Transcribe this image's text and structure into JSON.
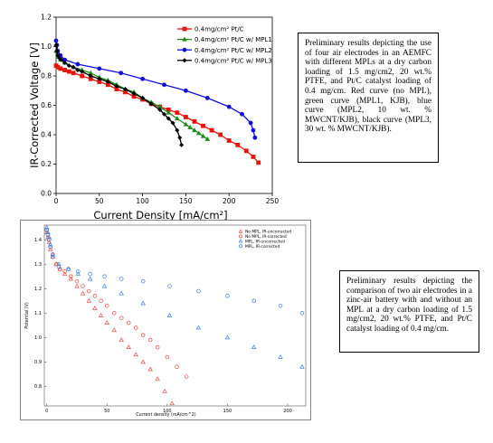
{
  "captions": {
    "top": "Preliminary results depicting the use of four air electrodes in an AEMFC with different MPLs at a dry carbon loading of 1.5 mg/cm2, 20 wt.% PTFE, and Pt/C catalyst loading of 0.4 mg/cm. Red curve (no MPL), green curve (MPL1, KJB), blue curve (MPL2, 10 wt. % MWCNT/KJB), black curve (MPL3, 30 wt. % MWCNT/KJB).",
    "bottom": "Preliminary results depicting the comparison of two air electrodes in a zinc-air battery with and without an MPL at a dry carbon loading of 1.5 mg/cm2, 20 wt.% PTFE, and Pt/C catalyst loading of 0.4 mg/cm."
  },
  "chart_data": [
    {
      "type": "line",
      "xlabel": "Current Density [mA/cm²]",
      "ylabel": "IR-Corrected Voltage [V]",
      "xlim": [
        0,
        250
      ],
      "ylim": [
        0,
        1.2
      ],
      "xticks": [
        "0",
        "50",
        "100",
        "150",
        "200",
        "250"
      ],
      "yticks": [
        "0.0",
        "0.2",
        "0.4",
        "0.6",
        "0.8",
        "1.0",
        "1.2"
      ],
      "grid": false,
      "legend_position": "top-right",
      "series": [
        {
          "name": "0.4mg/cm² Pt/C",
          "color": "#e8120c",
          "marker": "square",
          "x": [
            0,
            2,
            5,
            10,
            15,
            20,
            30,
            40,
            50,
            60,
            70,
            80,
            90,
            100,
            110,
            120,
            130,
            140,
            150,
            160,
            170,
            180,
            190,
            200,
            210,
            220,
            228,
            234
          ],
          "y": [
            0.87,
            0.86,
            0.85,
            0.84,
            0.83,
            0.82,
            0.8,
            0.78,
            0.76,
            0.74,
            0.71,
            0.69,
            0.66,
            0.64,
            0.61,
            0.59,
            0.57,
            0.55,
            0.52,
            0.49,
            0.46,
            0.43,
            0.4,
            0.36,
            0.33,
            0.29,
            0.25,
            0.21
          ]
        },
        {
          "name": "0.4mg/cm² Pt/C w/ MPL1",
          "color": "#1b8c1b",
          "marker": "triangle",
          "x": [
            0,
            2,
            5,
            10,
            20,
            30,
            40,
            50,
            60,
            70,
            80,
            90,
            100,
            110,
            120,
            130,
            140,
            150,
            155,
            160,
            165,
            170,
            175
          ],
          "y": [
            0.97,
            0.93,
            0.91,
            0.89,
            0.86,
            0.84,
            0.82,
            0.79,
            0.77,
            0.74,
            0.71,
            0.69,
            0.65,
            0.62,
            0.59,
            0.55,
            0.51,
            0.47,
            0.45,
            0.43,
            0.41,
            0.39,
            0.37
          ]
        },
        {
          "name": "0.4mg/cm² Pt/C w/ MPL2",
          "color": "#1010d8",
          "marker": "circle",
          "x": [
            0,
            1,
            2,
            5,
            10,
            25,
            50,
            75,
            100,
            125,
            150,
            175,
            200,
            215,
            225,
            228,
            230
          ],
          "y": [
            1.04,
            1.01,
            0.97,
            0.94,
            0.91,
            0.88,
            0.85,
            0.82,
            0.78,
            0.74,
            0.7,
            0.65,
            0.59,
            0.54,
            0.48,
            0.43,
            0.38
          ]
        },
        {
          "name": "0.4mg/cm² Pt/C w/ MPL3",
          "color": "#000000",
          "marker": "diamond",
          "x": [
            0,
            1,
            2,
            4,
            6,
            10,
            15,
            20,
            25,
            30,
            40,
            50,
            60,
            70,
            80,
            90,
            100,
            110,
            120,
            125,
            130,
            135,
            140,
            143,
            145
          ],
          "y": [
            1.01,
            0.97,
            0.94,
            0.92,
            0.91,
            0.89,
            0.87,
            0.86,
            0.84,
            0.83,
            0.8,
            0.78,
            0.76,
            0.73,
            0.71,
            0.68,
            0.65,
            0.61,
            0.57,
            0.54,
            0.51,
            0.48,
            0.43,
            0.38,
            0.33
          ]
        }
      ]
    },
    {
      "type": "scatter",
      "xlabel": "Current density (mA/cm^2)",
      "ylabel": "Potential (V)",
      "xlim": [
        -2,
        215
      ],
      "ylim": [
        0.72,
        1.46
      ],
      "xticks": [
        "0",
        "50",
        "100",
        "150",
        "200"
      ],
      "yticks": [
        "0.8",
        "0.9",
        "1.0",
        "1.1",
        "1.2",
        "1.3",
        "1.4"
      ],
      "grid": false,
      "legend_position": "top-right",
      "series": [
        {
          "name": "No MPL, IR-uncorrected",
          "color": "#e84a4a",
          "marker": "triangle",
          "x": [
            0,
            1,
            2,
            3,
            5,
            8,
            11,
            15,
            20,
            25,
            30,
            35,
            40,
            45,
            50,
            56,
            62,
            68,
            74,
            80,
            86,
            92,
            98,
            104
          ],
          "y": [
            1.43,
            1.41,
            1.39,
            1.36,
            1.33,
            1.3,
            1.28,
            1.26,
            1.24,
            1.21,
            1.18,
            1.15,
            1.12,
            1.09,
            1.06,
            1.03,
            0.99,
            0.96,
            0.93,
            0.9,
            0.87,
            0.83,
            0.78,
            0.73
          ]
        },
        {
          "name": "No MPL, IR-corrected",
          "color": "#e84a4a",
          "marker": "circle",
          "x": [
            0,
            1,
            2,
            3,
            5,
            8,
            11,
            15,
            20,
            25,
            30,
            35,
            40,
            45,
            50,
            56,
            62,
            68,
            74,
            80,
            86,
            92,
            100,
            108,
            116
          ],
          "y": [
            1.44,
            1.42,
            1.4,
            1.37,
            1.34,
            1.3,
            1.28,
            1.27,
            1.25,
            1.23,
            1.21,
            1.19,
            1.17,
            1.15,
            1.13,
            1.1,
            1.08,
            1.06,
            1.04,
            1.01,
            0.99,
            0.96,
            0.92,
            0.88,
            0.84
          ]
        },
        {
          "name": "MPL, IR-uncorrected",
          "color": "#3f7fd9",
          "marker": "triangle",
          "x": [
            0,
            1,
            2,
            3,
            5,
            10,
            18,
            26,
            36,
            48,
            62,
            80,
            102,
            126,
            150,
            172,
            194,
            212
          ],
          "y": [
            1.45,
            1.43,
            1.41,
            1.38,
            1.34,
            1.3,
            1.28,
            1.26,
            1.24,
            1.21,
            1.18,
            1.14,
            1.09,
            1.04,
            1.0,
            0.96,
            0.92,
            0.88
          ]
        },
        {
          "name": "MPL, IR-corrected",
          "color": "#3f7fd9",
          "marker": "circle",
          "x": [
            0,
            1,
            2,
            3,
            5,
            10,
            18,
            26,
            36,
            48,
            62,
            80,
            102,
            126,
            150,
            172,
            194,
            212
          ],
          "y": [
            1.44,
            1.42,
            1.4,
            1.37,
            1.33,
            1.29,
            1.28,
            1.27,
            1.26,
            1.25,
            1.24,
            1.23,
            1.21,
            1.19,
            1.17,
            1.15,
            1.13,
            1.1
          ]
        }
      ]
    }
  ]
}
